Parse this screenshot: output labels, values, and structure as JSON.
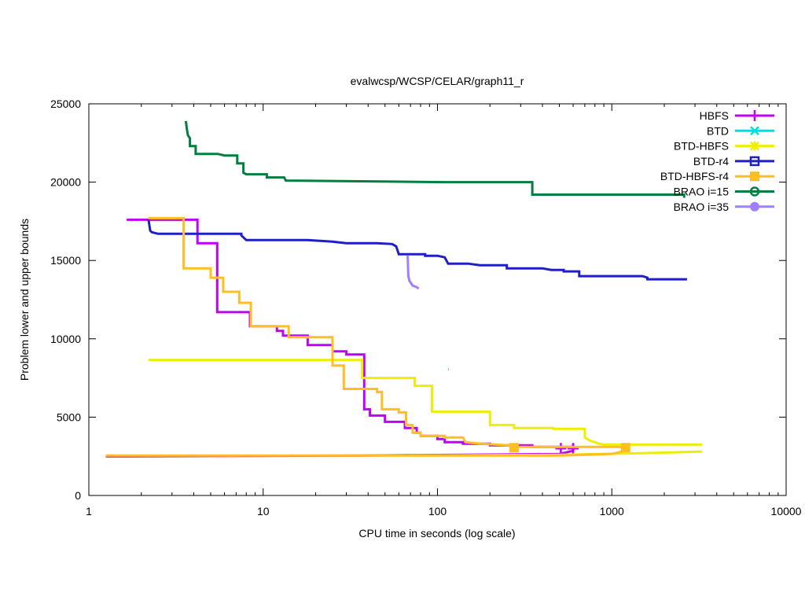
{
  "chart_data": {
    "type": "line",
    "title": "evalwcsp/WCSP/CELAR/graph11_r",
    "xlabel": "CPU time in seconds (log scale)",
    "ylabel": "Problem lower and upper bounds",
    "xscale": "log",
    "xlim": [
      1,
      10000
    ],
    "ylim": [
      0,
      25000
    ],
    "xticks": [
      1,
      10,
      100,
      1000,
      10000
    ],
    "xtick_labels": [
      "1",
      "10",
      "100",
      "1000",
      "10000"
    ],
    "yticks": [
      0,
      5000,
      10000,
      15000,
      20000,
      25000
    ],
    "ytick_labels": [
      "0",
      "5000",
      "10000",
      "15000",
      "20000",
      "25000"
    ],
    "grid": false,
    "legend_position": "top-right",
    "series": [
      {
        "name": "HBFS",
        "color": "#bf00ff",
        "marker": "plus",
        "upper": [
          [
            1.65,
            17600
          ],
          [
            4.2,
            17600
          ],
          [
            4.2,
            16100
          ],
          [
            5.45,
            16100
          ],
          [
            5.45,
            11700
          ],
          [
            8.4,
            11700
          ],
          [
            8.4,
            10800
          ],
          [
            12,
            10800
          ],
          [
            12,
            10500
          ],
          [
            13,
            10500
          ],
          [
            13,
            10200
          ],
          [
            18,
            10200
          ],
          [
            18,
            9600
          ],
          [
            25,
            9600
          ],
          [
            25,
            9200
          ],
          [
            30,
            9200
          ],
          [
            30,
            9000
          ],
          [
            38,
            9000
          ],
          [
            38,
            5500
          ],
          [
            41,
            5500
          ],
          [
            41,
            5100
          ],
          [
            50,
            5100
          ],
          [
            50,
            4700
          ],
          [
            65,
            4700
          ],
          [
            65,
            4300
          ],
          [
            76,
            4300
          ],
          [
            76,
            4000
          ],
          [
            80,
            4000
          ],
          [
            80,
            3800
          ],
          [
            100,
            3800
          ],
          [
            100,
            3600
          ],
          [
            110,
            3600
          ],
          [
            110,
            3400
          ],
          [
            140,
            3400
          ],
          [
            140,
            3300
          ],
          [
            200,
            3300
          ],
          [
            200,
            3200
          ],
          [
            350,
            3200
          ],
          [
            350,
            3100
          ],
          [
            600,
            3100
          ]
        ],
        "lower": [
          [
            1.25,
            2500
          ],
          [
            1.65,
            2500
          ],
          [
            40,
            2550
          ],
          [
            500,
            2650
          ],
          [
            600,
            2850
          ],
          [
            600,
            3300
          ]
        ],
        "markers": [
          [
            510,
            3000
          ],
          [
            600,
            3000
          ]
        ]
      },
      {
        "name": "BTD",
        "color": "#00e0e0",
        "marker": "x",
        "upper": [
          [
            115,
            8050
          ],
          [
            116,
            8050
          ]
        ],
        "lower": [],
        "markers": []
      },
      {
        "name": "BTD-HBFS",
        "color": "#eeee00",
        "marker": "star",
        "upper": [
          [
            2.2,
            8650
          ],
          [
            37,
            8650
          ],
          [
            37,
            7500
          ],
          [
            74,
            7500
          ],
          [
            74,
            7000
          ],
          [
            93,
            7000
          ],
          [
            93,
            5350
          ],
          [
            200,
            5350
          ],
          [
            200,
            4500
          ],
          [
            275,
            4500
          ],
          [
            275,
            4300
          ],
          [
            460,
            4300
          ],
          [
            460,
            4250
          ],
          [
            700,
            4250
          ],
          [
            700,
            3700
          ],
          [
            750,
            3500
          ],
          [
            850,
            3300
          ],
          [
            900,
            3250
          ],
          [
            3300,
            3250
          ]
        ],
        "lower": [
          [
            70,
            2550
          ],
          [
            500,
            2600
          ],
          [
            1500,
            2700
          ],
          [
            3300,
            2800
          ]
        ],
        "markers": []
      },
      {
        "name": "BTD-r4",
        "color": "#1f1fc8",
        "marker": "box",
        "upper": [
          [
            2.2,
            17600
          ],
          [
            2.25,
            16900
          ],
          [
            2.3,
            16800
          ],
          [
            2.5,
            16700
          ],
          [
            7.5,
            16700
          ],
          [
            7.5,
            16600
          ],
          [
            8,
            16300
          ],
          [
            18,
            16300
          ],
          [
            25,
            16200
          ],
          [
            30,
            16100
          ],
          [
            45,
            16100
          ],
          [
            55,
            16050
          ],
          [
            58,
            15900
          ],
          [
            60,
            15400
          ],
          [
            85,
            15400
          ],
          [
            85,
            15300
          ],
          [
            100,
            15300
          ],
          [
            110,
            15200
          ],
          [
            115,
            14800
          ],
          [
            150,
            14800
          ],
          [
            175,
            14700
          ],
          [
            250,
            14700
          ],
          [
            250,
            14500
          ],
          [
            400,
            14500
          ],
          [
            450,
            14400
          ],
          [
            530,
            14400
          ],
          [
            530,
            14300
          ],
          [
            650,
            14300
          ],
          [
            650,
            14000
          ],
          [
            1500,
            14000
          ],
          [
            1600,
            13900
          ],
          [
            1600,
            13800
          ],
          [
            2700,
            13800
          ]
        ],
        "lower": [],
        "markers": []
      },
      {
        "name": "BTD-HBFS-r4",
        "color": "#ffbf20",
        "marker": "filled-box",
        "upper": [
          [
            2.2,
            17700
          ],
          [
            3.5,
            17700
          ],
          [
            3.5,
            14500
          ],
          [
            5.0,
            14500
          ],
          [
            5.0,
            13900
          ],
          [
            5.9,
            13900
          ],
          [
            5.9,
            13000
          ],
          [
            7.3,
            13000
          ],
          [
            7.3,
            12300
          ],
          [
            8.5,
            12300
          ],
          [
            8.5,
            10800
          ],
          [
            14,
            10800
          ],
          [
            14,
            10100
          ],
          [
            25,
            10100
          ],
          [
            25,
            8300
          ],
          [
            29,
            8300
          ],
          [
            29,
            6800
          ],
          [
            45,
            6800
          ],
          [
            45,
            6600
          ],
          [
            48,
            6600
          ],
          [
            48,
            5500
          ],
          [
            60,
            5500
          ],
          [
            60,
            5300
          ],
          [
            66,
            5300
          ],
          [
            66,
            4500
          ],
          [
            72,
            4500
          ],
          [
            72,
            4000
          ],
          [
            80,
            4000
          ],
          [
            80,
            3800
          ],
          [
            110,
            3800
          ],
          [
            110,
            3700
          ],
          [
            140,
            3700
          ],
          [
            145,
            3400
          ],
          [
            180,
            3300
          ],
          [
            260,
            3200
          ],
          [
            270,
            3100
          ],
          [
            1200,
            3100
          ]
        ],
        "lower": [
          [
            1.25,
            2550
          ],
          [
            500,
            2550
          ],
          [
            1000,
            2650
          ],
          [
            1200,
            2850
          ],
          [
            1200,
            3100
          ]
        ],
        "markers": [
          [
            275,
            3050
          ],
          [
            1200,
            3050
          ]
        ]
      },
      {
        "name": "BRAO i=15",
        "color": "#007f3f",
        "marker": "circle-open",
        "upper": [
          [
            3.6,
            23900
          ],
          [
            3.65,
            23400
          ],
          [
            3.7,
            23000
          ],
          [
            3.8,
            22800
          ],
          [
            3.8,
            22300
          ],
          [
            4.1,
            22300
          ],
          [
            4.1,
            21800
          ],
          [
            5.5,
            21800
          ],
          [
            6,
            21700
          ],
          [
            7.1,
            21700
          ],
          [
            7.1,
            21200
          ],
          [
            7.7,
            21200
          ],
          [
            7.7,
            20600
          ],
          [
            8,
            20500
          ],
          [
            10.5,
            20500
          ],
          [
            10.5,
            20300
          ],
          [
            13.2,
            20300
          ],
          [
            13.5,
            20100
          ],
          [
            110,
            20000
          ],
          [
            350,
            20000
          ],
          [
            350,
            19200
          ],
          [
            2600,
            19200
          ],
          [
            2600,
            19000
          ]
        ],
        "lower": [],
        "markers": []
      },
      {
        "name": "BRAO i=35",
        "color": "#9f7fff",
        "marker": "circle-filled",
        "upper": [
          [
            67.5,
            15300
          ],
          [
            68,
            14000
          ],
          [
            69,
            13700
          ],
          [
            72,
            13400
          ],
          [
            76,
            13300
          ],
          [
            78,
            13200
          ]
        ],
        "lower": [],
        "markers": []
      }
    ]
  }
}
